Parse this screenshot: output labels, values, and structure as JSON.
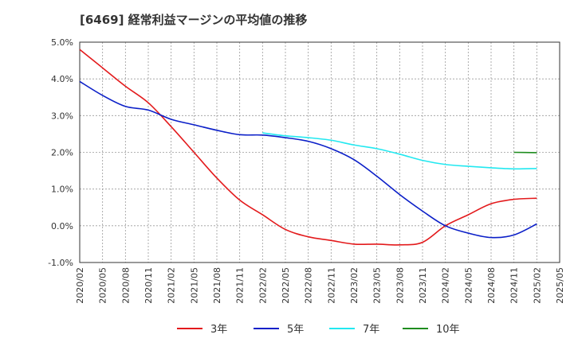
{
  "chart_data": {
    "type": "line",
    "title": "[6469]  経常利益マージンの平均値の推移",
    "xlabel": "",
    "ylabel": "",
    "ylim": [
      -1.0,
      5.0
    ],
    "y_ticks": [
      "5.0%",
      "4.0%",
      "3.0%",
      "2.0%",
      "1.0%",
      "0.0%",
      "-1.0%"
    ],
    "y_tick_values": [
      5.0,
      4.0,
      3.0,
      2.0,
      1.0,
      0.0,
      -1.0
    ],
    "x_ticks": [
      "2020/02",
      "2020/05",
      "2020/08",
      "2020/11",
      "2021/02",
      "2021/05",
      "2021/08",
      "2021/11",
      "2022/02",
      "2022/05",
      "2022/08",
      "2022/11",
      "2023/02",
      "2023/05",
      "2023/08",
      "2023/11",
      "2024/02",
      "2024/05",
      "2024/08",
      "2024/11",
      "2025/02",
      "2025/05"
    ],
    "grid": true,
    "legend_position": "bottom",
    "series": [
      {
        "name": "3年",
        "color": "#e31a1c",
        "x": [
          "2020/02",
          "2020/05",
          "2020/08",
          "2020/11",
          "2021/02",
          "2021/05",
          "2021/08",
          "2021/11",
          "2022/02",
          "2022/05",
          "2022/08",
          "2022/11",
          "2023/02",
          "2023/05",
          "2023/08",
          "2023/11",
          "2024/02",
          "2024/05",
          "2024/08",
          "2024/11",
          "2025/02"
        ],
        "values": [
          4.8,
          4.3,
          3.8,
          3.35,
          2.7,
          2.0,
          1.3,
          0.7,
          0.3,
          -0.1,
          -0.3,
          -0.4,
          -0.5,
          -0.5,
          -0.52,
          -0.45,
          0.0,
          0.3,
          0.6,
          0.72,
          0.75
        ]
      },
      {
        "name": "5年",
        "color": "#0b1fc8",
        "x": [
          "2020/02",
          "2020/05",
          "2020/08",
          "2020/11",
          "2021/02",
          "2021/05",
          "2021/08",
          "2021/11",
          "2022/02",
          "2022/05",
          "2022/08",
          "2022/11",
          "2023/02",
          "2023/05",
          "2023/08",
          "2023/11",
          "2024/02",
          "2024/05",
          "2024/08",
          "2024/11",
          "2025/02"
        ],
        "values": [
          3.93,
          3.55,
          3.25,
          3.15,
          2.9,
          2.75,
          2.6,
          2.48,
          2.47,
          2.4,
          2.3,
          2.1,
          1.8,
          1.35,
          0.85,
          0.4,
          0.0,
          -0.2,
          -0.32,
          -0.25,
          0.05
        ]
      },
      {
        "name": "7年",
        "color": "#22e8f0",
        "x": [
          "2022/02",
          "2022/05",
          "2022/08",
          "2022/11",
          "2023/02",
          "2023/05",
          "2023/08",
          "2023/11",
          "2024/02",
          "2024/05",
          "2024/08",
          "2024/11",
          "2025/02"
        ],
        "values": [
          2.53,
          2.45,
          2.4,
          2.33,
          2.2,
          2.1,
          1.95,
          1.78,
          1.67,
          1.62,
          1.58,
          1.55,
          1.56
        ]
      },
      {
        "name": "10年",
        "color": "#1e8c1e",
        "x": [
          "2024/11",
          "2025/02"
        ],
        "values": [
          2.0,
          1.99
        ]
      }
    ]
  }
}
